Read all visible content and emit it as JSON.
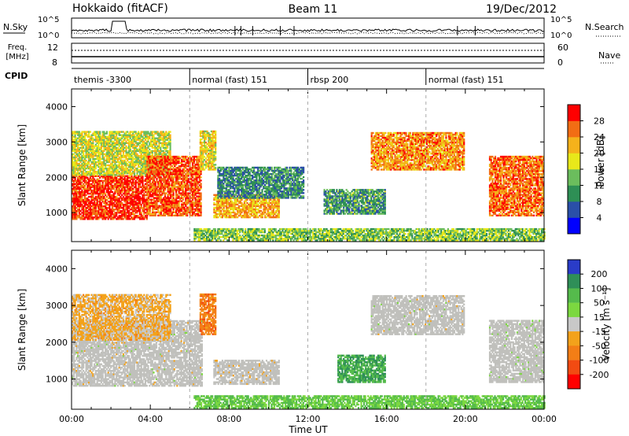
{
  "header": {
    "station": "Hokkaido (fitACF)",
    "beam": "Beam 11",
    "date": "19/Dec/2012"
  },
  "noise_panel": {
    "left_label": "N.Sky",
    "right_label": "N.Search",
    "left_ticks": [
      "10^5",
      "10^0"
    ],
    "right_ticks": [
      "10^5",
      "10^0"
    ]
  },
  "freq_panel": {
    "label_line1": "Freq.",
    "label_line2": "[MHz]",
    "left_ticks": [
      "12",
      "8"
    ],
    "right_ticks": [
      "60",
      "0"
    ],
    "right_label": "Nave"
  },
  "cpid_panel": {
    "label": "CPID",
    "modes": [
      {
        "name": "themis -3300",
        "start": 0
      },
      {
        "name": "normal (fast) 151",
        "start": 6
      },
      {
        "name": "rbsp 200",
        "start": 12
      },
      {
        "name": "normal (fast) 151",
        "start": 18
      }
    ]
  },
  "colors": {
    "power": [
      "#0000ff",
      "#2a4fa8",
      "#2e8f55",
      "#6bbd5d",
      "#e8e81a",
      "#f5b21b",
      "#f26d14",
      "#ff0000"
    ],
    "velocity": [
      "#2a3cc8",
      "#2f8f58",
      "#55bb4c",
      "#7cd840",
      "#c8c8c8",
      "#f3a21b",
      "#f37e16",
      "#f24b12",
      "#ff0000"
    ],
    "ground_scatter": "#c0c0bc"
  },
  "chart_data": [
    {
      "type": "heatmap",
      "name": "Power",
      "xlabel": "",
      "ylabel": "Slant Range [km]",
      "xlim": [
        0,
        24
      ],
      "ylim": [
        180,
        4500
      ],
      "y_ticks": [
        1000,
        2000,
        3000,
        4000
      ],
      "colorbar": {
        "label": "Power [dB]",
        "ticks": [
          "4",
          "8",
          "12",
          "16",
          "20",
          "24",
          "28"
        ]
      },
      "regions": [
        {
          "t0": 0.0,
          "t1": 3.8,
          "r0": 800,
          "r1": 2050,
          "value": 0.9
        },
        {
          "t0": 0.0,
          "t1": 5.0,
          "r0": 2050,
          "r1": 3300,
          "value": 0.55
        },
        {
          "t0": 3.8,
          "t1": 6.6,
          "r0": 900,
          "r1": 2600,
          "value": 0.85
        },
        {
          "t0": 6.5,
          "t1": 7.3,
          "r0": 2200,
          "r1": 3300,
          "value": 0.6
        },
        {
          "t0": 7.2,
          "t1": 10.5,
          "r0": 850,
          "r1": 1500,
          "value": 0.7
        },
        {
          "t0": 7.4,
          "t1": 11.8,
          "r0": 1400,
          "r1": 2300,
          "value": 0.3
        },
        {
          "t0": 12.8,
          "t1": 15.9,
          "r0": 950,
          "r1": 1650,
          "value": 0.35
        },
        {
          "t0": 15.2,
          "t1": 19.9,
          "r0": 2200,
          "r1": 3250,
          "value": 0.75
        },
        {
          "t0": 21.2,
          "t1": 24.0,
          "r0": 900,
          "r1": 2600,
          "value": 0.8
        },
        {
          "t0": 6.2,
          "t1": 24.0,
          "r0": 200,
          "r1": 520,
          "value": 0.45
        }
      ]
    },
    {
      "type": "heatmap",
      "name": "Velocity",
      "xlabel": "Time UT",
      "ylabel": "Slant Range [km]",
      "xlim": [
        0,
        24
      ],
      "ylim": [
        180,
        4500
      ],
      "x_ticks": [
        "00:00",
        "04:00",
        "08:00",
        "12:00",
        "16:00",
        "20:00",
        "00:00"
      ],
      "y_ticks": [
        1000,
        2000,
        3000,
        4000
      ],
      "colorbar": {
        "label": "Velocity [m s⁻¹]",
        "ticks": [
          "200",
          "100",
          "50",
          "15",
          "-15",
          "-50",
          "-100",
          "-200"
        ]
      },
      "regions": [
        {
          "t0": 0.0,
          "t1": 6.6,
          "r0": 800,
          "r1": 2600,
          "value": 0.0
        },
        {
          "t0": 0.0,
          "t1": 5.0,
          "r0": 2050,
          "r1": 3300,
          "value": -0.2
        },
        {
          "t0": 7.2,
          "t1": 10.5,
          "r0": 850,
          "r1": 1500,
          "value": -0.1
        },
        {
          "t0": 6.5,
          "t1": 7.3,
          "r0": 2200,
          "r1": 3300,
          "value": -0.5
        },
        {
          "t0": 13.5,
          "t1": 15.9,
          "r0": 900,
          "r1": 1650,
          "value": 0.6
        },
        {
          "t0": 15.2,
          "t1": 19.9,
          "r0": 2200,
          "r1": 3250,
          "value": 0.0
        },
        {
          "t0": 21.2,
          "t1": 24.0,
          "r0": 900,
          "r1": 2600,
          "value": 0.1
        },
        {
          "t0": 6.2,
          "t1": 24.0,
          "r0": 200,
          "r1": 520,
          "value": 0.4
        }
      ]
    }
  ]
}
